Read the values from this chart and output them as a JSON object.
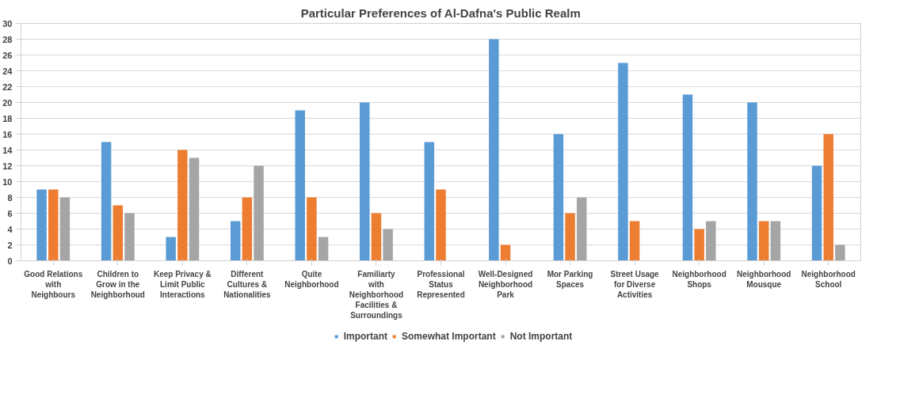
{
  "chart_data": {
    "type": "bar",
    "title": "Particular Preferences of Al-Dafna's Public Realm",
    "categories": [
      "Good Relations with Neighbours",
      "Children to Grow in the Neighborhoud",
      "Keep Privacy & Limit Public Interactions",
      "Different Cultures & Nationalities",
      "Quite Neighborhood",
      "Familiarty with Neighborhood Facilities & Surroundings",
      "Professional Status Represented",
      "Well-Designed Neighborhood Park",
      "Mor Parking Spaces",
      "Street Usage for Diverse Activities",
      "Neighborhood Shops",
      "Neighborhood Mousque",
      "Neighborhood School"
    ],
    "series": [
      {
        "name": "Important",
        "color": "#5b9bd5",
        "values": [
          9,
          15,
          3,
          5,
          19,
          20,
          15,
          28,
          16,
          25,
          21,
          20,
          12
        ]
      },
      {
        "name": "Somewhat Important",
        "color": "#ed7d31",
        "values": [
          9,
          7,
          14,
          8,
          8,
          6,
          9,
          2,
          6,
          5,
          4,
          5,
          16
        ]
      },
      {
        "name": "Not Important",
        "color": "#a5a5a5",
        "values": [
          8,
          6,
          13,
          12,
          3,
          4,
          0,
          0,
          8,
          0,
          5,
          5,
          2
        ]
      }
    ],
    "ylim": [
      0,
      30
    ],
    "yticks": [
      0,
      2,
      4,
      6,
      8,
      10,
      12,
      14,
      16,
      18,
      20,
      22,
      24,
      26,
      28,
      30
    ],
    "grid": "y",
    "legend": "bottom"
  }
}
